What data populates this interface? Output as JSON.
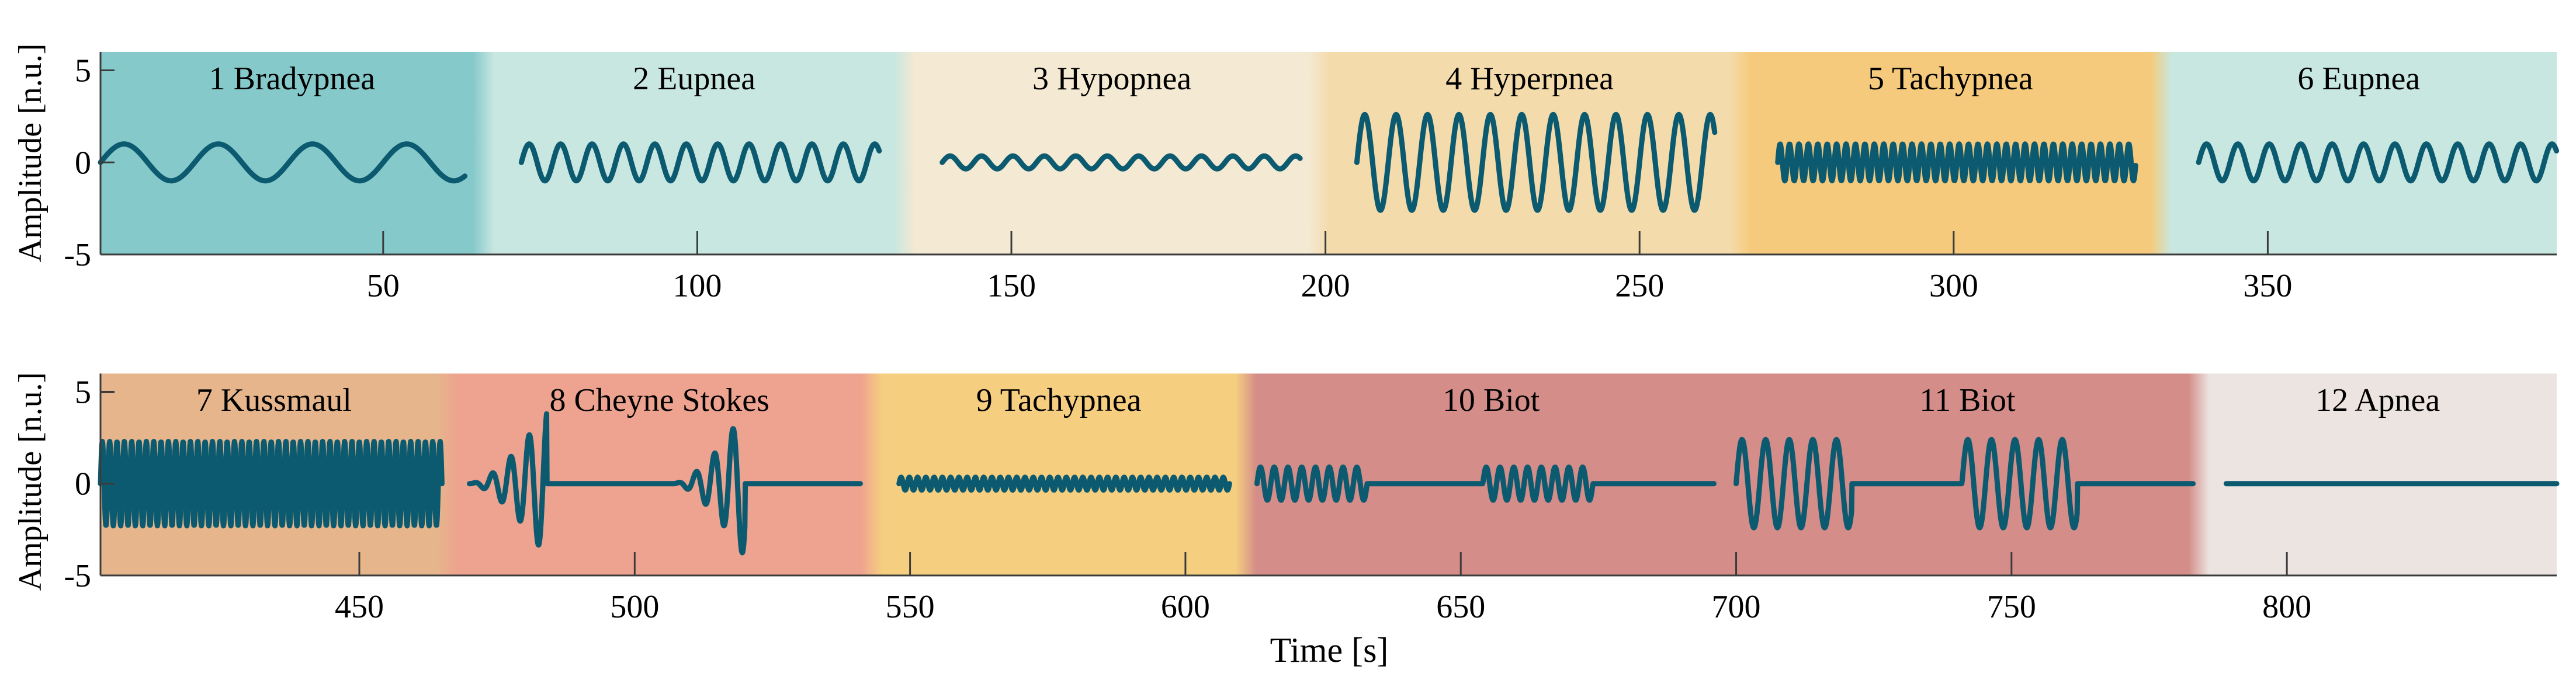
{
  "chart_data": [
    {
      "type": "line",
      "panel": "top",
      "xlabel": "",
      "ylabel": "Amplitude [n.u.]",
      "xlim": [
        5,
        396
      ],
      "ylim": [
        -5,
        6
      ],
      "xticks": [
        50,
        100,
        150,
        200,
        250,
        300,
        350
      ],
      "xtick_labels": [
        "50",
        "100",
        "150",
        "200",
        "250",
        "300",
        "350"
      ],
      "yticks": [
        5,
        0,
        -5
      ],
      "ytick_labels": [
        "5",
        "0",
        "-5"
      ],
      "segments": [
        {
          "name": "1 Bradypnea",
          "label": "1 Bradypnea",
          "x0": 5,
          "x1": 66,
          "bg": "#86c9cb",
          "amplitude": 1,
          "frequency_cpm": 4,
          "wave": {
            "start": 5,
            "end": 63
          }
        },
        {
          "name": "2 Eupnea",
          "label": "2 Eupnea",
          "x0": 66,
          "x1": 133,
          "bg": "#c8e7e0",
          "amplitude": 1,
          "frequency_cpm": 12,
          "wave": {
            "start": 72,
            "end": 129
          }
        },
        {
          "name": "3 Hypopnea",
          "label": "3 Hypopnea",
          "x0": 133,
          "x1": 199,
          "bg": "#f4e9d2",
          "amplitude": 0.35,
          "frequency_cpm": 12,
          "wave": {
            "start": 139,
            "end": 196
          }
        },
        {
          "name": "4 Hyperpnea",
          "label": "4 Hyperpnea",
          "x0": 199,
          "x1": 266,
          "bg": "#f4dbab",
          "amplitude": 2.6,
          "frequency_cpm": 12,
          "wave": {
            "start": 205,
            "end": 262
          }
        },
        {
          "name": "5 Tachypnea",
          "label": "5 Tachypnea",
          "x0": 266,
          "x1": 333,
          "bg": "#f5ca7c",
          "amplitude": 1,
          "frequency_cpm": 40,
          "wave": {
            "start": 272,
            "end": 329
          }
        },
        {
          "name": "6 Eupnea",
          "label": "6 Eupnea",
          "x0": 333,
          "x1": 396,
          "bg": "#c8e7e0",
          "amplitude": 1,
          "frequency_cpm": 12,
          "wave": {
            "start": 339,
            "end": 396
          }
        }
      ]
    },
    {
      "type": "line",
      "panel": "bottom",
      "xlabel": "Time [s]",
      "ylabel": "Amplitude [n.u.]",
      "xlim": [
        403,
        849
      ],
      "ylim": [
        -5,
        6
      ],
      "xticks": [
        450,
        500,
        550,
        600,
        650,
        700,
        750,
        800
      ],
      "xtick_labels": [
        "450",
        "500",
        "550",
        "600",
        "650",
        "700",
        "750",
        "800"
      ],
      "yticks": [
        5,
        0,
        -5
      ],
      "ytick_labels": [
        "5",
        "0",
        "-5"
      ],
      "segments": [
        {
          "name": "7 Kussmaul",
          "label": "7 Kussmaul",
          "x0": 403,
          "x1": 466,
          "bg": "#e6b58b",
          "amplitude": 2.3,
          "frequency_cpm": 45,
          "wave": {
            "start": 403,
            "end": 465
          }
        },
        {
          "name": "8 Cheyne Stokes",
          "label": "8 Cheyne Stokes",
          "x0": 466,
          "x1": 543,
          "bg": "#eda38f",
          "amplitude": 4,
          "frequency_cpm": 18,
          "wave": {
            "start": 470,
            "end": 541
          },
          "bursts": [
            [
              470,
              484
            ],
            [
              507,
              520
            ]
          ]
        },
        {
          "name": "9 Tachypnea",
          "label": "9 Tachypnea",
          "x0": 543,
          "x1": 611,
          "bg": "#f6ce80",
          "amplitude": 0.35,
          "frequency_cpm": 40,
          "wave": {
            "start": 548,
            "end": 608
          }
        },
        {
          "name": "10 Biot",
          "label": "10 Biot",
          "x0": 611,
          "x1": 700,
          "bg": "#d48d88",
          "amplitude": 0.9,
          "frequency_cpm": 24,
          "wave": {
            "start": 613,
            "end": 696
          },
          "bursts": [
            [
              613,
              633
            ],
            [
              654,
              674
            ]
          ]
        },
        {
          "name": "11 Biot",
          "label": "11 Biot",
          "x0": 700,
          "x1": 784,
          "bg": "#d48d88",
          "amplitude": 2.4,
          "frequency_cpm": 14,
          "wave": {
            "start": 700,
            "end": 783
          },
          "bursts": [
            [
              700,
              721
            ],
            [
              741,
              762
            ]
          ]
        },
        {
          "name": "12 Apnea",
          "label": "12 Apnea",
          "x0": 784,
          "x1": 849,
          "bg": "#ece4e0",
          "amplitude": 0,
          "frequency_cpm": 0,
          "wave": {
            "start": 789,
            "end": 849
          }
        }
      ]
    }
  ],
  "colors": {
    "line": "#0c5a70",
    "axis": "#3b3b3b"
  }
}
